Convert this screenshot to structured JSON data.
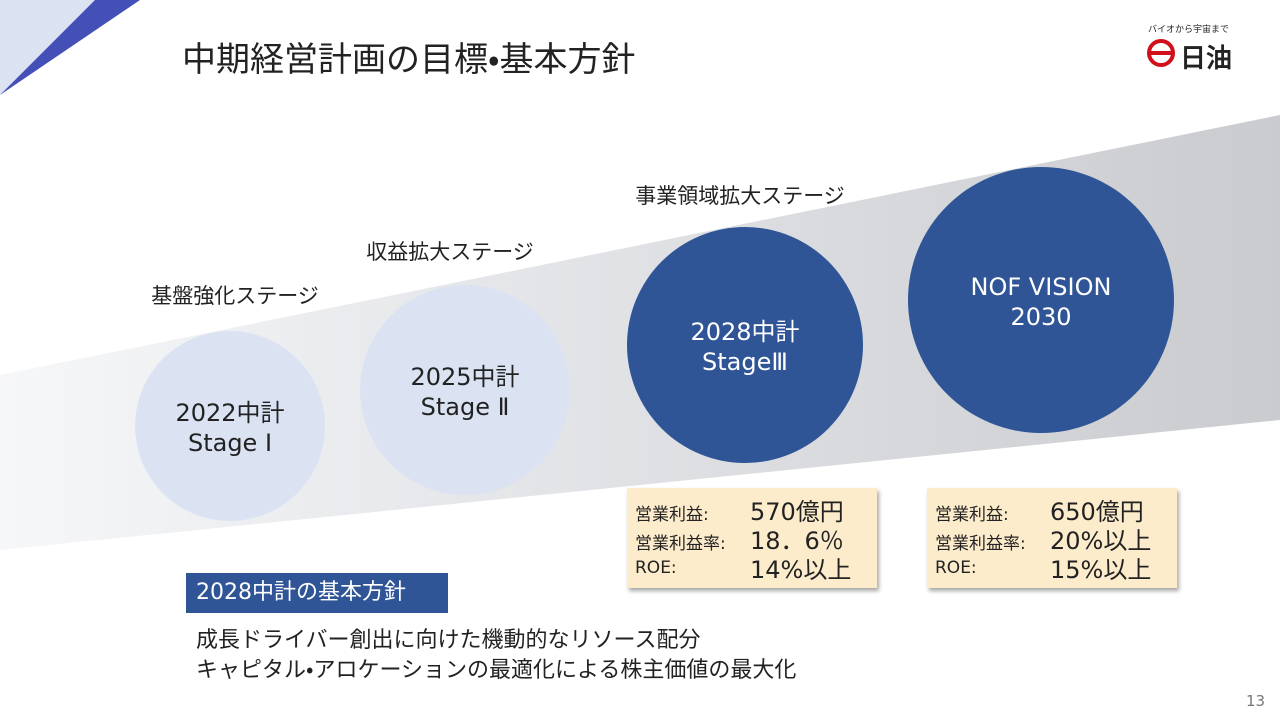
{
  "header": {
    "title": "中期経営計画の目標・基本方針"
  },
  "logo": {
    "tagline": "バイオから宇宙まで",
    "name": "日油"
  },
  "stages": [
    {
      "label": "基盤強化ステージ",
      "circle": [
        "2022中計",
        "Stage Ⅰ"
      ]
    },
    {
      "label": "収益拡大ステージ",
      "circle": [
        "2025中計",
        "Stage Ⅱ"
      ]
    },
    {
      "label": "事業領域拡大ステージ",
      "circle": [
        "2028中計",
        "StageⅢ"
      ]
    },
    {
      "label": null,
      "circle": [
        "NOF VISION",
        "2030"
      ]
    }
  ],
  "targets": [
    {
      "rows": [
        [
          "営業利益:",
          "570億円"
        ],
        [
          "営業利益率:",
          "18．6％"
        ],
        [
          "ROE:",
          "14%以上"
        ]
      ]
    },
    {
      "rows": [
        [
          "営業利益:",
          "650億円"
        ],
        [
          "営業利益率:",
          "20%以上"
        ],
        [
          "ROE:",
          "15%以上"
        ]
      ]
    }
  ],
  "policy": {
    "heading": "2028中計の基本方針",
    "items": [
      "成長ドライバー創出に向けた機動的なリソース配分",
      "キャピタル・アロケーションの最適化による株主価値の最大化"
    ]
  },
  "page_number": "13"
}
